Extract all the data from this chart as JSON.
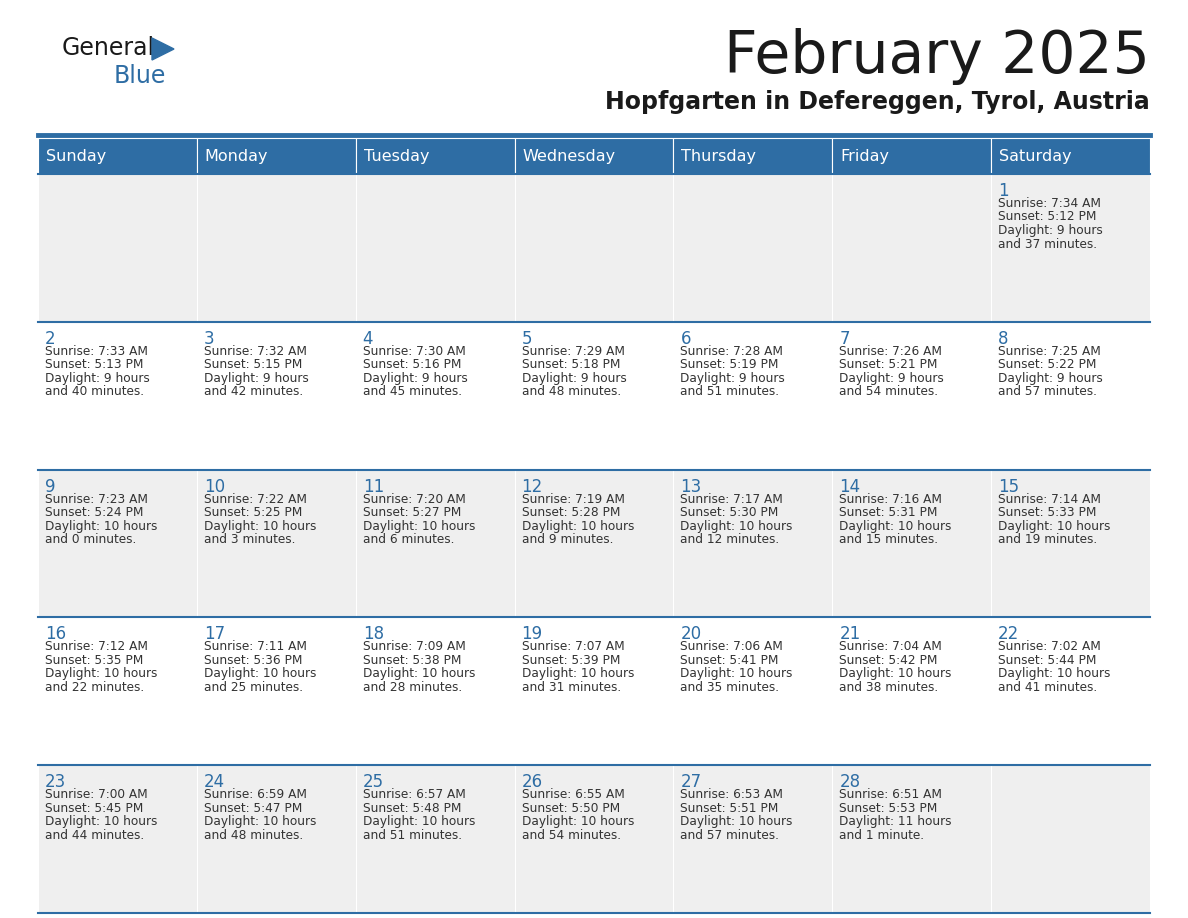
{
  "title": "February 2025",
  "subtitle": "Hopfgarten in Defereggen, Tyrol, Austria",
  "header_bg": "#2E6DA4",
  "header_text": "#FFFFFF",
  "cell_bg_odd": "#EFEFEF",
  "cell_bg_even": "#FFFFFF",
  "day_names": [
    "Sunday",
    "Monday",
    "Tuesday",
    "Wednesday",
    "Thursday",
    "Friday",
    "Saturday"
  ],
  "title_color": "#1a1a1a",
  "subtitle_color": "#1a1a1a",
  "day_num_color": "#2E6DA4",
  "info_color": "#333333",
  "line_color": "#2E6DA4",
  "logo_general_color": "#1a1a1a",
  "logo_blue_color": "#2E6DA4",
  "logo_tri_color": "#2E6DA4",
  "days": [
    {
      "day": 1,
      "col": 6,
      "row": 0,
      "sunrise": "7:34 AM",
      "sunset": "5:12 PM",
      "daylight_h": "9",
      "daylight_m": "37"
    },
    {
      "day": 2,
      "col": 0,
      "row": 1,
      "sunrise": "7:33 AM",
      "sunset": "5:13 PM",
      "daylight_h": "9",
      "daylight_m": "40"
    },
    {
      "day": 3,
      "col": 1,
      "row": 1,
      "sunrise": "7:32 AM",
      "sunset": "5:15 PM",
      "daylight_h": "9",
      "daylight_m": "42"
    },
    {
      "day": 4,
      "col": 2,
      "row": 1,
      "sunrise": "7:30 AM",
      "sunset": "5:16 PM",
      "daylight_h": "9",
      "daylight_m": "45"
    },
    {
      "day": 5,
      "col": 3,
      "row": 1,
      "sunrise": "7:29 AM",
      "sunset": "5:18 PM",
      "daylight_h": "9",
      "daylight_m": "48"
    },
    {
      "day": 6,
      "col": 4,
      "row": 1,
      "sunrise": "7:28 AM",
      "sunset": "5:19 PM",
      "daylight_h": "9",
      "daylight_m": "51"
    },
    {
      "day": 7,
      "col": 5,
      "row": 1,
      "sunrise": "7:26 AM",
      "sunset": "5:21 PM",
      "daylight_h": "9",
      "daylight_m": "54"
    },
    {
      "day": 8,
      "col": 6,
      "row": 1,
      "sunrise": "7:25 AM",
      "sunset": "5:22 PM",
      "daylight_h": "9",
      "daylight_m": "57"
    },
    {
      "day": 9,
      "col": 0,
      "row": 2,
      "sunrise": "7:23 AM",
      "sunset": "5:24 PM",
      "daylight_h": "10",
      "daylight_m": "0"
    },
    {
      "day": 10,
      "col": 1,
      "row": 2,
      "sunrise": "7:22 AM",
      "sunset": "5:25 PM",
      "daylight_h": "10",
      "daylight_m": "3"
    },
    {
      "day": 11,
      "col": 2,
      "row": 2,
      "sunrise": "7:20 AM",
      "sunset": "5:27 PM",
      "daylight_h": "10",
      "daylight_m": "6"
    },
    {
      "day": 12,
      "col": 3,
      "row": 2,
      "sunrise": "7:19 AM",
      "sunset": "5:28 PM",
      "daylight_h": "10",
      "daylight_m": "9"
    },
    {
      "day": 13,
      "col": 4,
      "row": 2,
      "sunrise": "7:17 AM",
      "sunset": "5:30 PM",
      "daylight_h": "10",
      "daylight_m": "12"
    },
    {
      "day": 14,
      "col": 5,
      "row": 2,
      "sunrise": "7:16 AM",
      "sunset": "5:31 PM",
      "daylight_h": "10",
      "daylight_m": "15"
    },
    {
      "day": 15,
      "col": 6,
      "row": 2,
      "sunrise": "7:14 AM",
      "sunset": "5:33 PM",
      "daylight_h": "10",
      "daylight_m": "19"
    },
    {
      "day": 16,
      "col": 0,
      "row": 3,
      "sunrise": "7:12 AM",
      "sunset": "5:35 PM",
      "daylight_h": "10",
      "daylight_m": "22"
    },
    {
      "day": 17,
      "col": 1,
      "row": 3,
      "sunrise": "7:11 AM",
      "sunset": "5:36 PM",
      "daylight_h": "10",
      "daylight_m": "25"
    },
    {
      "day": 18,
      "col": 2,
      "row": 3,
      "sunrise": "7:09 AM",
      "sunset": "5:38 PM",
      "daylight_h": "10",
      "daylight_m": "28"
    },
    {
      "day": 19,
      "col": 3,
      "row": 3,
      "sunrise": "7:07 AM",
      "sunset": "5:39 PM",
      "daylight_h": "10",
      "daylight_m": "31"
    },
    {
      "day": 20,
      "col": 4,
      "row": 3,
      "sunrise": "7:06 AM",
      "sunset": "5:41 PM",
      "daylight_h": "10",
      "daylight_m": "35"
    },
    {
      "day": 21,
      "col": 5,
      "row": 3,
      "sunrise": "7:04 AM",
      "sunset": "5:42 PM",
      "daylight_h": "10",
      "daylight_m": "38"
    },
    {
      "day": 22,
      "col": 6,
      "row": 3,
      "sunrise": "7:02 AM",
      "sunset": "5:44 PM",
      "daylight_h": "10",
      "daylight_m": "41"
    },
    {
      "day": 23,
      "col": 0,
      "row": 4,
      "sunrise": "7:00 AM",
      "sunset": "5:45 PM",
      "daylight_h": "10",
      "daylight_m": "44"
    },
    {
      "day": 24,
      "col": 1,
      "row": 4,
      "sunrise": "6:59 AM",
      "sunset": "5:47 PM",
      "daylight_h": "10",
      "daylight_m": "48"
    },
    {
      "day": 25,
      "col": 2,
      "row": 4,
      "sunrise": "6:57 AM",
      "sunset": "5:48 PM",
      "daylight_h": "10",
      "daylight_m": "51"
    },
    {
      "day": 26,
      "col": 3,
      "row": 4,
      "sunrise": "6:55 AM",
      "sunset": "5:50 PM",
      "daylight_h": "10",
      "daylight_m": "54"
    },
    {
      "day": 27,
      "col": 4,
      "row": 4,
      "sunrise": "6:53 AM",
      "sunset": "5:51 PM",
      "daylight_h": "10",
      "daylight_m": "57"
    },
    {
      "day": 28,
      "col": 5,
      "row": 4,
      "sunrise": "6:51 AM",
      "sunset": "5:53 PM",
      "daylight_h": "11",
      "daylight_m": "1",
      "daylight_min_label": "minute"
    }
  ]
}
